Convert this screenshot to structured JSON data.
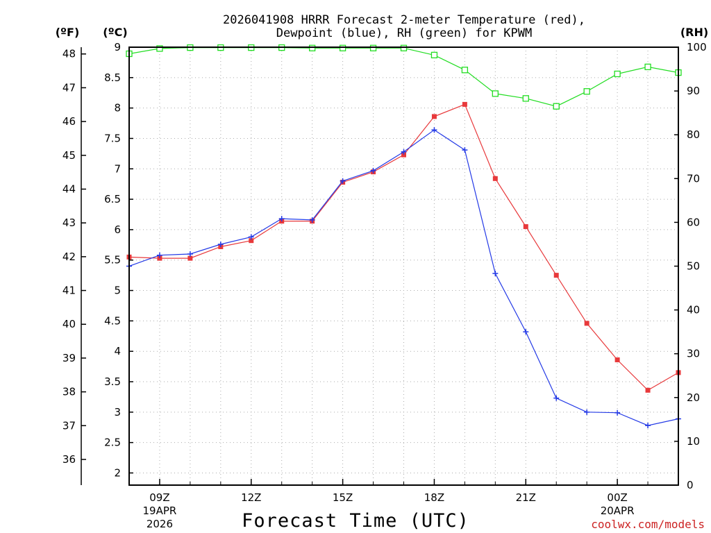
{
  "chart_data": {
    "type": "line",
    "title_line1": "2026041908 HRRR Forecast 2-meter Temperature (red),",
    "title_line2": "Dewpoint (blue), RH (green) for KPWM",
    "xlabel": "Forecast Time (UTC)",
    "credit": "coolwx.com/models",
    "unit_f": "(ºF)",
    "unit_c": "(ºC)",
    "unit_rh": "(RH)",
    "x_hours": [
      8,
      9,
      10,
      11,
      12,
      13,
      14,
      15,
      16,
      17,
      18,
      19,
      20,
      21,
      22,
      23,
      24,
      25,
      26
    ],
    "xlim": [
      8,
      26
    ],
    "x_ticks": [
      {
        "hour": 9,
        "label": "09Z",
        "date": "19APR",
        "year": "2026"
      },
      {
        "hour": 12,
        "label": "12Z",
        "date": "",
        "year": ""
      },
      {
        "hour": 15,
        "label": "15Z",
        "date": "",
        "year": ""
      },
      {
        "hour": 18,
        "label": "18Z",
        "date": "",
        "year": ""
      },
      {
        "hour": 21,
        "label": "21Z",
        "date": "",
        "year": ""
      },
      {
        "hour": 24,
        "label": "00Z",
        "date": "20APR",
        "year": ""
      }
    ],
    "c_axis": {
      "lim": [
        1.8,
        9.0
      ],
      "ticks": [
        "2",
        "2.5",
        "3",
        "3.5",
        "4",
        "4.5",
        "5",
        "5.5",
        "6",
        "6.5",
        "7",
        "7.5",
        "8",
        "8.5",
        "9"
      ]
    },
    "f_axis": {
      "ticks": [
        "36",
        "37",
        "38",
        "39",
        "40",
        "41",
        "42",
        "43",
        "44",
        "45",
        "46",
        "47",
        "48"
      ]
    },
    "rh_axis": {
      "lim": [
        0,
        100
      ],
      "ticks": [
        "0",
        "10",
        "20",
        "30",
        "40",
        "50",
        "60",
        "70",
        "80",
        "90",
        "100"
      ]
    },
    "series": [
      {
        "name": "Temperature",
        "axis": "c",
        "color": "#e8393b",
        "marker": "filled-square",
        "values": [
          5.55,
          5.53,
          5.53,
          5.72,
          5.82,
          6.14,
          6.14,
          6.78,
          6.95,
          7.23,
          7.86,
          8.06,
          6.84,
          6.05,
          5.25,
          4.46,
          3.86,
          3.36,
          3.65
        ]
      },
      {
        "name": "Dewpoint",
        "axis": "c",
        "color": "#2339e6",
        "marker": "plus",
        "values": [
          5.4,
          5.58,
          5.6,
          5.76,
          5.88,
          6.18,
          6.16,
          6.8,
          6.97,
          7.28,
          7.64,
          7.31,
          5.28,
          4.32,
          3.23,
          3.0,
          2.99,
          2.78,
          2.89
        ]
      },
      {
        "name": "RH",
        "axis": "rh",
        "color": "#22dd22",
        "marker": "open-square",
        "values": [
          98.5,
          99.7,
          99.9,
          99.9,
          99.9,
          99.9,
          99.8,
          99.8,
          99.8,
          99.8,
          98.2,
          94.8,
          89.4,
          88.3,
          86.5,
          89.9,
          93.9,
          95.5,
          94.2
        ]
      }
    ]
  }
}
